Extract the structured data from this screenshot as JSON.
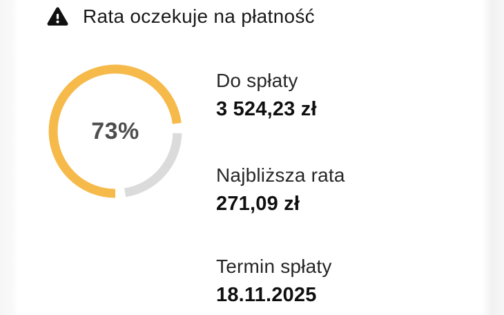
{
  "header": {
    "icon": "warning-icon",
    "title": "Rata oczekuje na płatność"
  },
  "progress": {
    "percent": 73,
    "label": "73%",
    "arc_color": "#F6BA4B",
    "track_color": "#DBDBDB",
    "percent_text_color": "#4D4D4D"
  },
  "details": [
    {
      "label": "Do spłaty",
      "value": "3 524,23 zł"
    },
    {
      "label": "Najbliższa rata",
      "value": "271,09 zł"
    },
    {
      "label": "Termin spłaty",
      "value": "18.11.2025"
    }
  ],
  "colors": {
    "icon": "#111111",
    "header_text": "#191919",
    "label_text": "#262626",
    "value_text": "#0F0F0F",
    "page_edge": "#F6F6F6"
  }
}
